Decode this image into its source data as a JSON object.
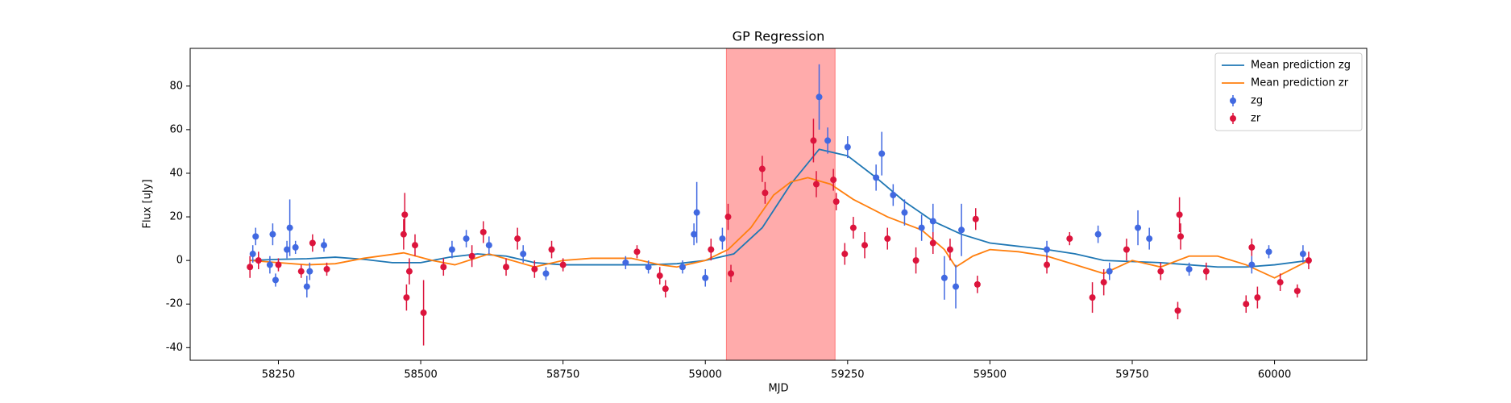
{
  "chart_data": {
    "type": "scatter",
    "title": "GP Regression",
    "xlabel": "MJD",
    "ylabel": "Flux [uJy]",
    "xlim": [
      58095,
      60162
    ],
    "ylim": [
      -45.8,
      97.3
    ],
    "xticks": [
      58250,
      58500,
      58750,
      59000,
      59250,
      59500,
      59750,
      60000
    ],
    "yticks": [
      -40,
      -20,
      0,
      20,
      40,
      60,
      80
    ],
    "legend": "upper right",
    "shade": [
      59037,
      59228
    ],
    "shade_color": "#ff0000",
    "series": [
      {
        "name": "Mean prediction zg",
        "kind": "line",
        "color": "#1f77b4",
        "x": [
          58200,
          58250,
          58300,
          58350,
          58400,
          58450,
          58500,
          58550,
          58600,
          58650,
          58700,
          58750,
          58800,
          58850,
          58900,
          58950,
          59000,
          59050,
          59100,
          59150,
          59200,
          59250,
          59300,
          59350,
          59400,
          59450,
          59500,
          59550,
          59600,
          59650,
          59700,
          59750,
          59800,
          59850,
          59900,
          59950,
          60000,
          60060
        ],
        "values": [
          0,
          0.5,
          0.8,
          1.5,
          0.5,
          -1,
          -1,
          1.5,
          3,
          2,
          -1,
          -2,
          -2,
          -2,
          -2,
          -1.5,
          0,
          3,
          15,
          35,
          51,
          48,
          38,
          27,
          18,
          12,
          8,
          6.5,
          5,
          3,
          0,
          -0.5,
          -1,
          -2,
          -3,
          -3,
          -2,
          0
        ]
      },
      {
        "name": "Mean prediction zr",
        "kind": "line",
        "color": "#ff7f0e",
        "x": [
          58200,
          58250,
          58300,
          58350,
          58400,
          58470,
          58520,
          58560,
          58620,
          58660,
          58700,
          58750,
          58800,
          58870,
          58920,
          58950,
          59000,
          59040,
          59080,
          59120,
          59150,
          59180,
          59220,
          59260,
          59320,
          59380,
          59420,
          59440,
          59470,
          59500,
          59550,
          59600,
          59650,
          59700,
          59750,
          59800,
          59850,
          59900,
          59950,
          60000,
          60060
        ],
        "values": [
          0,
          -1,
          -2,
          -1.5,
          1,
          3.5,
          0,
          -2,
          3,
          0,
          -3,
          0,
          1,
          1,
          -2,
          -3,
          0,
          5,
          15,
          30,
          36,
          38,
          35,
          28,
          20,
          14,
          5,
          -3,
          2,
          5,
          4,
          2,
          -2,
          -6,
          0,
          -3,
          2,
          2,
          -2,
          -8,
          0
        ]
      },
      {
        "name": "zg",
        "kind": "errorbar",
        "color": "#4169e1",
        "x": [
          58205,
          58210,
          58235,
          58240,
          58245,
          58265,
          58270,
          58280,
          58300,
          58305,
          58330,
          58555,
          58580,
          58620,
          58680,
          58720,
          58860,
          58900,
          58960,
          58980,
          58985,
          59000,
          59030,
          59200,
          59215,
          59250,
          59300,
          59310,
          59330,
          59350,
          59380,
          59400,
          59420,
          59440,
          59450,
          59600,
          59690,
          59710,
          59760,
          59780,
          59850,
          59960,
          59990,
          60050
        ],
        "values": [
          3,
          11,
          -2,
          12,
          -9,
          5,
          15,
          6,
          -12,
          -5,
          7,
          5,
          10,
          7,
          3,
          -6,
          -1,
          -3,
          -3,
          12,
          22,
          -8,
          10,
          75,
          55,
          52,
          38,
          49,
          30,
          22,
          15,
          18,
          -8,
          -12,
          14,
          5,
          12,
          -5,
          15,
          10,
          -4,
          -2,
          4,
          3
        ],
        "errors": [
          4,
          4,
          4,
          5,
          3,
          4,
          13,
          3,
          5,
          4,
          3,
          4,
          4,
          4,
          4,
          3,
          3,
          3,
          3,
          5,
          14,
          4,
          5,
          15,
          6,
          5,
          6,
          10,
          5,
          6,
          6,
          8,
          10,
          10,
          12,
          4,
          4,
          4,
          8,
          5,
          3,
          4,
          3,
          4
        ]
      },
      {
        "name": "zr",
        "kind": "errorbar",
        "color": "#dc143c",
        "x": [
          58200,
          58215,
          58250,
          58290,
          58310,
          58335,
          58470,
          58472,
          58475,
          58480,
          58490,
          58505,
          58540,
          58590,
          58610,
          58650,
          58670,
          58700,
          58730,
          58750,
          58880,
          58920,
          58930,
          59010,
          59040,
          59045,
          59100,
          59105,
          59190,
          59195,
          59225,
          59230,
          59245,
          59260,
          59280,
          59320,
          59370,
          59400,
          59430,
          59475,
          59478,
          59600,
          59640,
          59680,
          59700,
          59740,
          59800,
          59830,
          59833,
          59835,
          59880,
          59950,
          59960,
          59970,
          60010,
          60040,
          60060
        ],
        "values": [
          -3,
          0,
          -2,
          -5,
          8,
          -4,
          12,
          21,
          -17,
          -5,
          7,
          -24,
          -3,
          2,
          13,
          -3,
          10,
          -4,
          5,
          -2,
          4,
          -7,
          -13,
          5,
          20,
          -6,
          42,
          31,
          55,
          35,
          37,
          27,
          3,
          15,
          7,
          10,
          0,
          8,
          5,
          19,
          -11,
          -2,
          10,
          -17,
          -10,
          5,
          -5,
          -23,
          21,
          11,
          -5,
          -20,
          6,
          -17,
          -10,
          -14,
          0
        ],
        "errors": [
          5,
          4,
          3,
          3,
          4,
          3,
          7,
          10,
          6,
          6,
          5,
          15,
          4,
          5,
          5,
          4,
          5,
          4,
          4,
          3,
          3,
          4,
          4,
          5,
          6,
          4,
          6,
          5,
          10,
          6,
          5,
          4,
          5,
          5,
          6,
          5,
          6,
          5,
          5,
          5,
          4,
          4,
          3,
          7,
          6,
          5,
          4,
          4,
          8,
          6,
          4,
          4,
          4,
          5,
          4,
          3,
          4
        ]
      }
    ]
  }
}
